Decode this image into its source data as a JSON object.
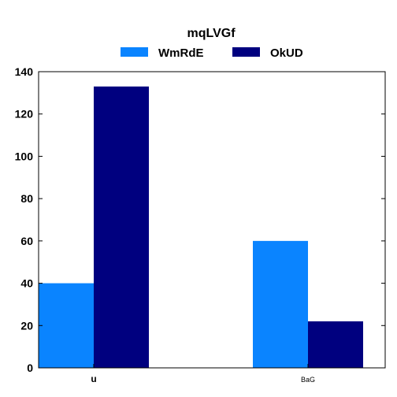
{
  "chart_data": {
    "type": "bar",
    "title": "mqLVGf",
    "categories": [
      "u",
      "BaG"
    ],
    "series": [
      {
        "name": "WmRdE",
        "values": [
          40,
          60
        ],
        "color": "#0a84ff"
      },
      {
        "name": "OkUD",
        "values": [
          133,
          22
        ],
        "color": "#00007f"
      }
    ],
    "xlabel": "",
    "ylabel": "",
    "ylim": [
      0,
      140
    ],
    "yticks": [
      0,
      20,
      40,
      60,
      80,
      100,
      120,
      140
    ],
    "grid": false,
    "legend_position": "top-center"
  }
}
